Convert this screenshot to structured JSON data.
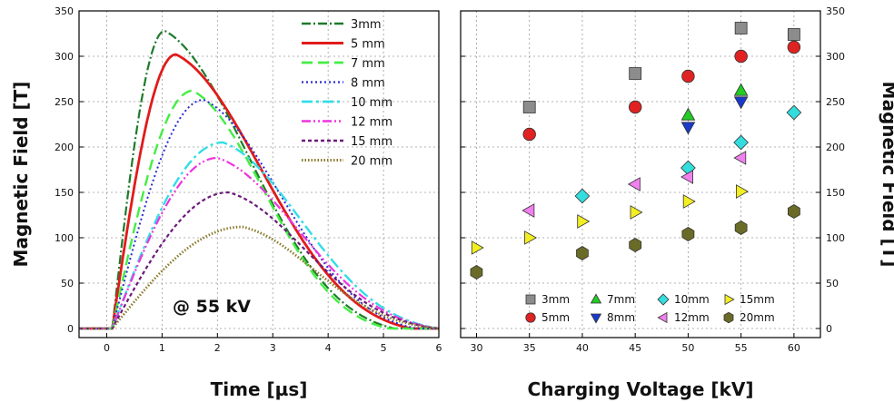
{
  "chart_data": [
    {
      "type": "line",
      "xlabel": "Time [µs]",
      "ylabel": "Magnetic Field [T]",
      "xlim": [
        -0.5,
        6
      ],
      "ylim": [
        -10,
        350
      ],
      "xticks": [
        "0",
        "1",
        "2",
        "3",
        "4",
        "5",
        "6"
      ],
      "yticks": [
        "0",
        "50",
        "100",
        "150",
        "200",
        "250",
        "300",
        "350"
      ],
      "grid": true,
      "legend_position": "top-right",
      "annotation": "@ 55 kV",
      "series": [
        {
          "name": "3mm",
          "color": "#1e7a2a",
          "dash": "10,3,2,3",
          "width": 2.2,
          "peak": 328,
          "t_peak": 1.05,
          "t_end": 5.2,
          "sigma_rise": 0.47,
          "sigma_fall": 1.2
        },
        {
          "name": "5 mm",
          "color": "#e11b1b",
          "dash": "",
          "width": 2.8,
          "peak": 302,
          "t_peak": 1.25,
          "t_end": 5.5,
          "sigma_rise": 0.56,
          "sigma_fall": 1.15
        },
        {
          "name": "7 mm",
          "color": "#44ee44",
          "dash": "12,6",
          "width": 2.4,
          "peak": 262,
          "t_peak": 1.55,
          "t_end": 5.1,
          "sigma_rise": 0.68,
          "sigma_fall": 1.3
        },
        {
          "name": "8 mm",
          "color": "#2a2ad0",
          "dash": "2,3",
          "width": 2.0,
          "peak": 252,
          "t_peak": 1.75,
          "t_end": 5.6,
          "sigma_rise": 0.78,
          "sigma_fall": 1.4
        },
        {
          "name": "10 mm",
          "color": "#33dde6",
          "dash": "12,4,3,4",
          "width": 2.4,
          "peak": 205,
          "t_peak": 2.1,
          "t_end": 6.0,
          "sigma_rise": 0.95,
          "sigma_fall": 1.45
        },
        {
          "name": "12 mm",
          "color": "#ee33dd",
          "dash": "10,3,2,3,2,3",
          "width": 2.2,
          "peak": 188,
          "t_peak": 2.0,
          "t_end": 6.0,
          "sigma_rise": 0.9,
          "sigma_fall": 1.5
        },
        {
          "name": "15 mm",
          "color": "#6b1a7a",
          "dash": "4,3",
          "width": 2.2,
          "peak": 150,
          "t_peak": 2.2,
          "t_end": 6.0,
          "sigma_rise": 0.98,
          "sigma_fall": 1.55
        },
        {
          "name": "20 mm",
          "color": "#8a7a2a",
          "dash": "1.5,2",
          "width": 2.8,
          "peak": 112,
          "t_peak": 2.45,
          "t_end": 6.0,
          "sigma_rise": 1.1,
          "sigma_fall": 1.65
        }
      ]
    },
    {
      "type": "scatter",
      "xlabel": "Charging Voltage [kV]",
      "ylabel": "Magnetic Field [T]",
      "xlim": [
        28.5,
        62.5
      ],
      "ylim": [
        -10,
        350
      ],
      "xticks": [
        "30",
        "35",
        "40",
        "45",
        "50",
        "55",
        "60"
      ],
      "yticks": [
        "0",
        "50",
        "100",
        "150",
        "200",
        "250",
        "300",
        "350"
      ],
      "yaxis_side": "right",
      "grid": true,
      "legend_position": "bottom-right",
      "legend_columns": 4,
      "series": [
        {
          "name": "3mm",
          "marker": "square",
          "color": "#8c8c8c",
          "points": [
            [
              35,
              244
            ],
            [
              45,
              281
            ],
            [
              55,
              331
            ],
            [
              60,
              324
            ]
          ]
        },
        {
          "name": "7mm",
          "marker": "triangle-up",
          "color": "#22cc22",
          "points": [
            [
              50,
              235
            ],
            [
              55,
              262
            ]
          ]
        },
        {
          "name": "10mm",
          "marker": "diamond",
          "color": "#33dddd",
          "points": [
            [
              40,
              146
            ],
            [
              50,
              177
            ],
            [
              55,
              205
            ],
            [
              60,
              238
            ]
          ]
        },
        {
          "name": "15mm",
          "marker": "triangle-right",
          "color": "#f2ee22",
          "points": [
            [
              30,
              89
            ],
            [
              35,
              100
            ],
            [
              40,
              118
            ],
            [
              45,
              128
            ],
            [
              50,
              140
            ],
            [
              55,
              151
            ]
          ]
        },
        {
          "name": "5mm",
          "marker": "circle",
          "color": "#e02222",
          "points": [
            [
              35,
              214
            ],
            [
              45,
              244
            ],
            [
              50,
              278
            ],
            [
              55,
              300
            ],
            [
              60,
              310
            ]
          ]
        },
        {
          "name": "8mm",
          "marker": "triangle-down",
          "color": "#1a3acc",
          "points": [
            [
              50,
              222
            ],
            [
              55,
              250
            ]
          ]
        },
        {
          "name": "12mm",
          "marker": "triangle-left",
          "color": "#f080ee",
          "points": [
            [
              35,
              130
            ],
            [
              45,
              159
            ],
            [
              50,
              167
            ],
            [
              55,
              188
            ]
          ]
        },
        {
          "name": "20mm",
          "marker": "hexagon",
          "color": "#6b6b28",
          "points": [
            [
              30,
              62
            ],
            [
              40,
              83
            ],
            [
              45,
              92
            ],
            [
              50,
              104
            ],
            [
              55,
              111
            ],
            [
              60,
              129
            ]
          ]
        }
      ]
    }
  ]
}
